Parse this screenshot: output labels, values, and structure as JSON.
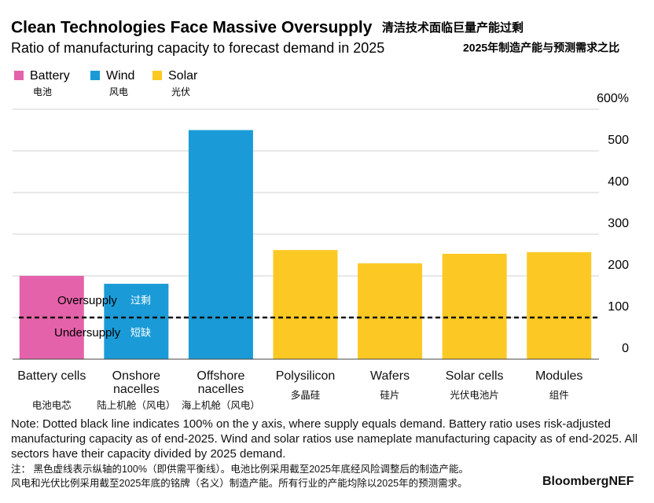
{
  "chart_data": {
    "type": "bar",
    "title": "Clean Technologies Face Massive Oversupply",
    "title_zh": "清洁技术面临巨量产能过剩",
    "subtitle": "Ratio of manufacturing capacity to forecast demand in 2025",
    "subtitle_zh": "2025年制造产能与预测需求之比",
    "legend": [
      {
        "name": "Battery",
        "name_zh": "电池",
        "color": "#e462a9"
      },
      {
        "name": "Wind",
        "name_zh": "风电",
        "color": "#1a9bd7"
      },
      {
        "name": "Solar",
        "name_zh": "光伏",
        "color": "#fcc924"
      }
    ],
    "categories": [
      "Battery cells",
      "Onshore nacelles",
      "Offshore nacelles",
      "Polysilicon",
      "Wafers",
      "Solar cells",
      "Modules"
    ],
    "categories_zh": [
      "电池电芯",
      "陆上机舱（风电）",
      "海上机舱（风电）",
      "多晶硅",
      "硅片",
      "光伏电池片",
      "组件"
    ],
    "values": [
      200,
      181,
      550,
      262,
      230,
      253,
      257
    ],
    "bar_colors": [
      "#e462a9",
      "#1a9bd7",
      "#1a9bd7",
      "#fcc924",
      "#fcc924",
      "#fcc924",
      "#fcc924"
    ],
    "ylim": [
      0,
      600
    ],
    "yticks": [
      0,
      100,
      200,
      300,
      400,
      500,
      {
        "value": 600,
        "label": "600%"
      }
    ],
    "grid": true,
    "reference_line": 100,
    "annotations": [
      "Oversupply",
      "过剩",
      "Undersupply",
      "短缺"
    ],
    "note": "Note: Dotted black line indicates 100% on the y axis, where supply equals demand. Battery ratio uses risk-adjusted manufacturing capacity as of end-2025. Wind and solar ratios use nameplate manufacturing capacity as of end-2025. All sectors have their capacity divided by 2025 demand.",
    "note_zh": [
      "注： 黑色虚线表示纵轴的100%（即供需平衡线）。电池比例采用截至2025年底经风险调整后的制造产能。",
      "风电和光伏比例采用截至2025年底的铭牌（名义）制造产能。所有行业的产能均除以2025年的预测需求。"
    ],
    "source": "BloombergNEF"
  }
}
